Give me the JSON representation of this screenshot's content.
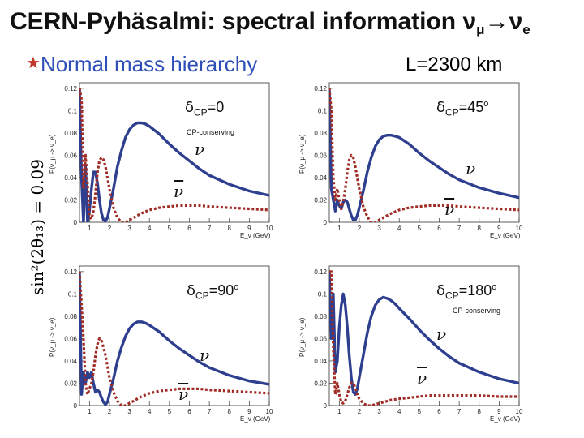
{
  "slide": {
    "title_main": "CERN-Pyhäsalmi: spectral information ν",
    "title_sub1": "μ",
    "title_arrow": "→ν",
    "title_sub2": "e",
    "bullet_star": "★",
    "bullet_text": "Normal mass hierarchy",
    "baseline": "L=2300 km",
    "side_label": "sin²(2θ₁₃) = 0.09"
  },
  "colors": {
    "neutrino": "#2e3f8f",
    "antineutrino": "#a02c25",
    "title_blue": "#2f4fb8"
  },
  "chart_data": [
    {
      "type": "line",
      "panel": "top-left",
      "delta_symbol": "δ",
      "delta_sub": "CP",
      "delta_value": "=0",
      "delta_deg": "",
      "note": "CP-conserving",
      "nu_label": "ν",
      "nubar_label": "ν",
      "ylabel": "P(ν_μ -> ν_e)",
      "xlabel": "E_ν (GeV)",
      "xlim": [
        0.5,
        10
      ],
      "ylim": [
        0,
        0.125
      ],
      "xticks": [
        1,
        2,
        3,
        4,
        5,
        6,
        7,
        8,
        9,
        10
      ],
      "yticks": [
        0,
        0.02,
        0.04,
        0.06,
        0.08,
        0.1,
        0.12
      ],
      "series": [
        {
          "name": "neutrino",
          "style": "solid",
          "x": [
            0.5,
            0.6,
            0.7,
            0.8,
            0.9,
            1.0,
            1.1,
            1.2,
            1.3,
            1.4,
            1.5,
            1.6,
            1.7,
            1.8,
            1.9,
            2.0,
            2.2,
            2.4,
            2.6,
            2.8,
            3.0,
            3.2,
            3.4,
            3.6,
            3.8,
            4.0,
            4.5,
            5.0,
            5.5,
            6.0,
            6.5,
            7.0,
            8.0,
            9.0,
            10.0
          ],
          "y": [
            0.12,
            0.04,
            0.0,
            0.05,
            0.0,
            0.01,
            0.03,
            0.045,
            0.045,
            0.035,
            0.02,
            0.008,
            0.002,
            0.001,
            0.004,
            0.012,
            0.03,
            0.05,
            0.064,
            0.076,
            0.083,
            0.087,
            0.089,
            0.089,
            0.088,
            0.086,
            0.079,
            0.07,
            0.062,
            0.055,
            0.048,
            0.042,
            0.034,
            0.028,
            0.024
          ]
        },
        {
          "name": "antineutrino",
          "style": "dotted",
          "x": [
            0.5,
            0.6,
            0.7,
            0.8,
            0.9,
            1.0,
            1.1,
            1.2,
            1.3,
            1.4,
            1.5,
            1.6,
            1.7,
            1.8,
            1.9,
            2.0,
            2.2,
            2.4,
            2.6,
            2.8,
            3.0,
            3.2,
            3.4,
            3.6,
            4.0,
            4.5,
            5.0,
            5.5,
            6.0,
            6.5,
            7.0,
            8.0,
            9.0,
            10.0
          ],
          "y": [
            0.12,
            0.11,
            0.03,
            0.06,
            0.035,
            0.005,
            0.003,
            0.01,
            0.025,
            0.045,
            0.055,
            0.058,
            0.056,
            0.05,
            0.04,
            0.03,
            0.013,
            0.004,
            0.0,
            0.0,
            0.002,
            0.004,
            0.006,
            0.008,
            0.011,
            0.013,
            0.014,
            0.015,
            0.015,
            0.015,
            0.014,
            0.013,
            0.012,
            0.011
          ]
        }
      ]
    },
    {
      "type": "line",
      "panel": "top-right",
      "delta_symbol": "δ",
      "delta_sub": "CP",
      "delta_value": "=45",
      "delta_deg": "o",
      "note": "",
      "nu_label": "ν",
      "nubar_label": "ν",
      "ylabel": "P(ν_μ -> ν_e)",
      "xlabel": "E_ν (GeV)",
      "xlim": [
        0.5,
        10
      ],
      "ylim": [
        0,
        0.125
      ],
      "xticks": [
        1,
        2,
        3,
        4,
        5,
        6,
        7,
        8,
        9,
        10
      ],
      "yticks": [
        0,
        0.02,
        0.04,
        0.06,
        0.08,
        0.1,
        0.12
      ],
      "series": [
        {
          "name": "neutrino",
          "style": "solid",
          "x": [
            0.5,
            0.6,
            0.7,
            0.8,
            0.9,
            1.0,
            1.1,
            1.2,
            1.3,
            1.4,
            1.5,
            1.6,
            1.7,
            1.8,
            1.9,
            2.0,
            2.2,
            2.4,
            2.6,
            2.8,
            3.0,
            3.2,
            3.4,
            3.6,
            3.8,
            4.0,
            4.5,
            5.0,
            5.5,
            6.0,
            6.5,
            7.0,
            8.0,
            9.0,
            10.0
          ],
          "y": [
            0.12,
            0.03,
            0.02,
            0.01,
            0.02,
            0.015,
            0.012,
            0.018,
            0.02,
            0.018,
            0.012,
            0.006,
            0.002,
            0.002,
            0.006,
            0.013,
            0.028,
            0.045,
            0.058,
            0.068,
            0.074,
            0.077,
            0.078,
            0.078,
            0.077,
            0.076,
            0.07,
            0.062,
            0.055,
            0.049,
            0.043,
            0.038,
            0.031,
            0.026,
            0.022
          ]
        },
        {
          "name": "antineutrino",
          "style": "dotted",
          "x": [
            0.5,
            0.6,
            0.7,
            0.8,
            0.9,
            1.0,
            1.1,
            1.2,
            1.3,
            1.4,
            1.5,
            1.6,
            1.7,
            1.8,
            1.9,
            2.0,
            2.2,
            2.4,
            2.6,
            2.8,
            3.0,
            3.2,
            3.4,
            3.6,
            4.0,
            4.5,
            5.0,
            5.5,
            6.0,
            6.5,
            7.0,
            8.0,
            9.0,
            10.0
          ],
          "y": [
            0.12,
            0.1,
            0.04,
            0.02,
            0.03,
            0.02,
            0.012,
            0.018,
            0.03,
            0.045,
            0.056,
            0.06,
            0.058,
            0.05,
            0.04,
            0.03,
            0.014,
            0.005,
            0.0,
            0.0,
            0.002,
            0.004,
            0.006,
            0.008,
            0.011,
            0.013,
            0.014,
            0.015,
            0.015,
            0.015,
            0.014,
            0.013,
            0.012,
            0.011
          ]
        }
      ]
    },
    {
      "type": "line",
      "panel": "bottom-left",
      "delta_symbol": "δ",
      "delta_sub": "CP",
      "delta_value": "=90",
      "delta_deg": "o",
      "note": "",
      "nu_label": "ν",
      "nubar_label": "ν",
      "ylabel": "P(ν_μ -> ν_e)",
      "xlabel": "E_ν (GeV)",
      "xlim": [
        0.5,
        10
      ],
      "ylim": [
        0,
        0.125
      ],
      "xticks": [
        1,
        2,
        3,
        4,
        5,
        6,
        7,
        8,
        9,
        10
      ],
      "yticks": [
        0,
        0.02,
        0.04,
        0.06,
        0.08,
        0.1,
        0.12
      ],
      "series": [
        {
          "name": "neutrino",
          "style": "solid",
          "x": [
            0.5,
            0.6,
            0.7,
            0.8,
            0.9,
            1.0,
            1.1,
            1.2,
            1.3,
            1.4,
            1.5,
            1.6,
            1.7,
            1.8,
            1.9,
            2.0,
            2.2,
            2.4,
            2.6,
            2.8,
            3.0,
            3.2,
            3.4,
            3.6,
            3.8,
            4.0,
            4.5,
            5.0,
            5.5,
            6.0,
            6.5,
            7.0,
            8.0,
            9.0,
            10.0
          ],
          "y": [
            0.12,
            0.01,
            0.03,
            0.02,
            0.03,
            0.025,
            0.03,
            0.02,
            0.012,
            0.014,
            0.012,
            0.007,
            0.003,
            0.001,
            0.003,
            0.01,
            0.024,
            0.04,
            0.052,
            0.062,
            0.069,
            0.073,
            0.075,
            0.075,
            0.074,
            0.072,
            0.066,
            0.058,
            0.051,
            0.045,
            0.039,
            0.034,
            0.027,
            0.022,
            0.019
          ]
        },
        {
          "name": "antineutrino",
          "style": "dotted",
          "x": [
            0.5,
            0.6,
            0.7,
            0.8,
            0.9,
            1.0,
            1.1,
            1.2,
            1.3,
            1.4,
            1.5,
            1.6,
            1.7,
            1.8,
            1.9,
            2.0,
            2.2,
            2.4,
            2.6,
            2.8,
            3.0,
            3.2,
            3.4,
            3.6,
            4.0,
            4.5,
            5.0,
            5.5,
            6.0,
            6.5,
            7.0,
            8.0,
            9.0,
            10.0
          ],
          "y": [
            0.12,
            0.09,
            0.06,
            0.02,
            0.01,
            0.015,
            0.02,
            0.03,
            0.045,
            0.055,
            0.06,
            0.058,
            0.052,
            0.045,
            0.035,
            0.025,
            0.012,
            0.004,
            0.0,
            0.0,
            0.002,
            0.004,
            0.006,
            0.008,
            0.011,
            0.013,
            0.014,
            0.015,
            0.015,
            0.015,
            0.014,
            0.013,
            0.012,
            0.011
          ]
        }
      ]
    },
    {
      "type": "line",
      "panel": "bottom-right",
      "delta_symbol": "δ",
      "delta_sub": "CP",
      "delta_value": "=180",
      "delta_deg": "o",
      "note": "CP-conserving",
      "nu_label": "ν",
      "nubar_label": "ν",
      "ylabel": "P(ν_μ -> ν_e)",
      "xlabel": "E_ν (GeV)",
      "xlim": [
        0.5,
        10
      ],
      "ylim": [
        0,
        0.125
      ],
      "xticks": [
        1,
        2,
        3,
        4,
        5,
        6,
        7,
        8,
        9,
        10
      ],
      "yticks": [
        0,
        0.02,
        0.04,
        0.06,
        0.08,
        0.1,
        0.12
      ],
      "series": [
        {
          "name": "neutrino",
          "style": "solid",
          "x": [
            0.5,
            0.6,
            0.7,
            0.8,
            0.9,
            1.0,
            1.1,
            1.2,
            1.3,
            1.4,
            1.5,
            1.6,
            1.7,
            1.8,
            1.9,
            2.0,
            2.2,
            2.4,
            2.6,
            2.8,
            3.0,
            3.2,
            3.4,
            3.6,
            3.8,
            4.0,
            4.5,
            5.0,
            5.5,
            6.0,
            6.5,
            7.0,
            8.0,
            9.0,
            10.0
          ],
          "y": [
            0.12,
            0.06,
            0.1,
            0.03,
            0.04,
            0.07,
            0.09,
            0.1,
            0.09,
            0.07,
            0.045,
            0.025,
            0.012,
            0.01,
            0.015,
            0.025,
            0.045,
            0.065,
            0.08,
            0.09,
            0.095,
            0.097,
            0.096,
            0.094,
            0.091,
            0.087,
            0.078,
            0.068,
            0.059,
            0.051,
            0.044,
            0.038,
            0.03,
            0.024,
            0.02
          ]
        },
        {
          "name": "antineutrino",
          "style": "dotted",
          "x": [
            0.5,
            0.6,
            0.7,
            0.8,
            0.9,
            1.0,
            1.1,
            1.2,
            1.3,
            1.4,
            1.5,
            1.6,
            1.7,
            1.8,
            1.9,
            2.0,
            2.2,
            2.4,
            2.6,
            2.8,
            3.0,
            3.2,
            3.4,
            3.6,
            4.0,
            4.5,
            5.0,
            5.5,
            6.0,
            6.5,
            7.0,
            8.0,
            9.0,
            10.0
          ],
          "y": [
            0.12,
            0.12,
            0.05,
            0.01,
            0.02,
            0.01,
            0.003,
            0.002,
            0.004,
            0.01,
            0.016,
            0.02,
            0.02,
            0.016,
            0.01,
            0.006,
            0.002,
            0.0,
            0.0,
            0.001,
            0.002,
            0.003,
            0.004,
            0.005,
            0.006,
            0.007,
            0.008,
            0.009,
            0.009,
            0.009,
            0.009,
            0.009,
            0.008,
            0.008
          ]
        }
      ]
    }
  ]
}
